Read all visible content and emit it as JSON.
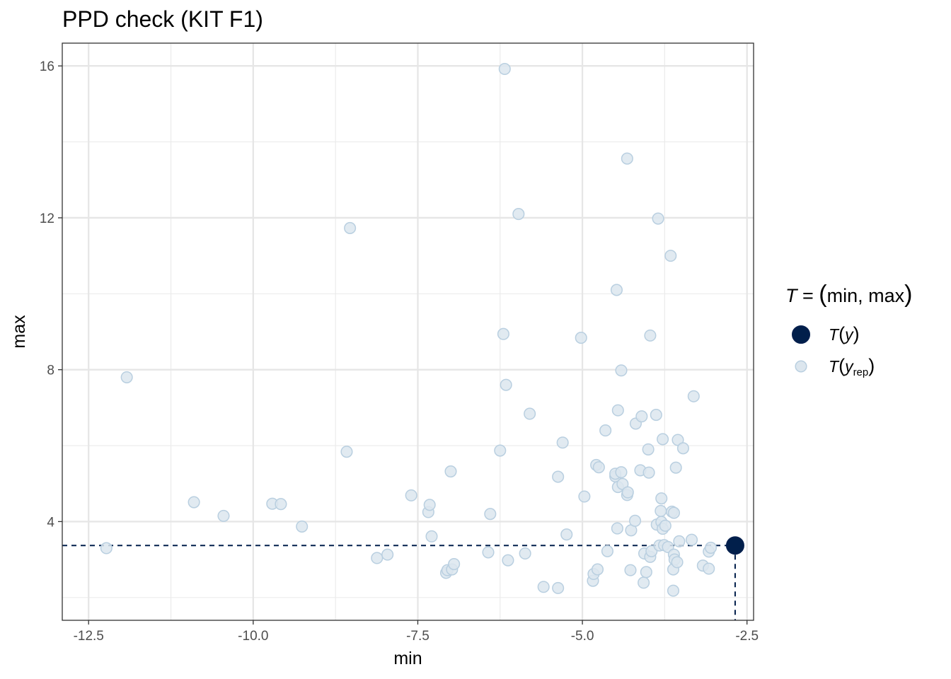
{
  "chart_data": {
    "type": "scatter",
    "title": "PPD check (KIT F1)",
    "xlabel": "min",
    "ylabel": "max",
    "xlim": [
      -12.9,
      -2.4
    ],
    "ylim": [
      1.4,
      16.6
    ],
    "xticks": [
      -12.5,
      -10.0,
      -7.5,
      -5.0,
      -2.5
    ],
    "xtick_labels": [
      "-12.5",
      "-10.0",
      "-7.5",
      "-5.0",
      "-2.5"
    ],
    "yticks": [
      4,
      8,
      12,
      16
    ],
    "ytick_labels": [
      "4",
      "8",
      "12",
      "16"
    ],
    "grid": true,
    "legend": {
      "title": {
        "prefix": "T",
        "equals": " = ",
        "open": "(",
        "body": "min, max",
        "close": ")"
      },
      "placement": "right",
      "entries": [
        {
          "name_fn": "T",
          "name_arg": "y",
          "name_sub": "",
          "color": "#011f4b",
          "stroke": "#031f4d"
        },
        {
          "name_fn": "T",
          "name_arg": "y",
          "name_sub": "rep",
          "color": "#dce6ee",
          "stroke": "#b9cfe0"
        }
      ]
    },
    "observed": {
      "x": -2.68,
      "y": 3.37
    },
    "replicated": [
      {
        "x": -12.23,
        "y": 3.3
      },
      {
        "x": -11.92,
        "y": 7.8
      },
      {
        "x": -10.9,
        "y": 4.51
      },
      {
        "x": -10.45,
        "y": 4.15
      },
      {
        "x": -9.71,
        "y": 4.47
      },
      {
        "x": -9.58,
        "y": 4.46
      },
      {
        "x": -9.26,
        "y": 3.87
      },
      {
        "x": -8.58,
        "y": 5.84
      },
      {
        "x": -8.53,
        "y": 11.73
      },
      {
        "x": -8.12,
        "y": 3.04
      },
      {
        "x": -7.96,
        "y": 3.13
      },
      {
        "x": -7.6,
        "y": 4.69
      },
      {
        "x": -7.34,
        "y": 4.25
      },
      {
        "x": -7.32,
        "y": 4.44
      },
      {
        "x": -7.29,
        "y": 3.61
      },
      {
        "x": -7.07,
        "y": 2.65
      },
      {
        "x": -7.05,
        "y": 2.72
      },
      {
        "x": -6.98,
        "y": 2.74
      },
      {
        "x": -6.95,
        "y": 2.88
      },
      {
        "x": -7.0,
        "y": 5.32
      },
      {
        "x": -6.43,
        "y": 3.19
      },
      {
        "x": -6.4,
        "y": 4.2
      },
      {
        "x": -6.25,
        "y": 5.87
      },
      {
        "x": -6.2,
        "y": 8.94
      },
      {
        "x": -6.18,
        "y": 15.92
      },
      {
        "x": -6.16,
        "y": 7.6
      },
      {
        "x": -6.13,
        "y": 2.98
      },
      {
        "x": -5.97,
        "y": 12.1
      },
      {
        "x": -5.87,
        "y": 3.16
      },
      {
        "x": -5.8,
        "y": 6.84
      },
      {
        "x": -5.59,
        "y": 2.28
      },
      {
        "x": -5.37,
        "y": 2.25
      },
      {
        "x": -5.37,
        "y": 5.18
      },
      {
        "x": -5.3,
        "y": 6.08
      },
      {
        "x": -5.24,
        "y": 3.66
      },
      {
        "x": -5.02,
        "y": 8.84
      },
      {
        "x": -4.97,
        "y": 4.66
      },
      {
        "x": -4.84,
        "y": 2.44
      },
      {
        "x": -4.83,
        "y": 2.62
      },
      {
        "x": -4.77,
        "y": 2.74
      },
      {
        "x": -4.79,
        "y": 5.49
      },
      {
        "x": -4.75,
        "y": 5.43
      },
      {
        "x": -4.65,
        "y": 6.4
      },
      {
        "x": -4.62,
        "y": 3.22
      },
      {
        "x": -4.5,
        "y": 5.19
      },
      {
        "x": -4.5,
        "y": 5.26
      },
      {
        "x": -4.48,
        "y": 10.1
      },
      {
        "x": -4.47,
        "y": 3.82
      },
      {
        "x": -4.46,
        "y": 4.91
      },
      {
        "x": -4.46,
        "y": 6.93
      },
      {
        "x": -4.41,
        "y": 5.3
      },
      {
        "x": -4.41,
        "y": 7.98
      },
      {
        "x": -4.39,
        "y": 4.99
      },
      {
        "x": -4.32,
        "y": 4.7
      },
      {
        "x": -4.31,
        "y": 4.77
      },
      {
        "x": -4.32,
        "y": 13.56
      },
      {
        "x": -4.26,
        "y": 3.77
      },
      {
        "x": -4.27,
        "y": 2.72
      },
      {
        "x": -4.2,
        "y": 4.02
      },
      {
        "x": -4.19,
        "y": 6.58
      },
      {
        "x": -4.12,
        "y": 5.35
      },
      {
        "x": -4.1,
        "y": 6.77
      },
      {
        "x": -4.07,
        "y": 2.39
      },
      {
        "x": -4.06,
        "y": 3.16
      },
      {
        "x": -4.03,
        "y": 2.67
      },
      {
        "x": -4.0,
        "y": 5.9
      },
      {
        "x": -3.99,
        "y": 5.29
      },
      {
        "x": -3.97,
        "y": 8.9
      },
      {
        "x": -3.97,
        "y": 3.07
      },
      {
        "x": -3.95,
        "y": 3.22
      },
      {
        "x": -3.88,
        "y": 6.81
      },
      {
        "x": -3.87,
        "y": 3.92
      },
      {
        "x": -3.85,
        "y": 11.98
      },
      {
        "x": -3.83,
        "y": 3.37
      },
      {
        "x": -3.81,
        "y": 4.28
      },
      {
        "x": -3.8,
        "y": 4.61
      },
      {
        "x": -3.8,
        "y": 3.99
      },
      {
        "x": -3.78,
        "y": 6.17
      },
      {
        "x": -3.78,
        "y": 3.81
      },
      {
        "x": -3.76,
        "y": 3.38
      },
      {
        "x": -3.74,
        "y": 3.89
      },
      {
        "x": -3.7,
        "y": 3.33
      },
      {
        "x": -3.66,
        "y": 11.0
      },
      {
        "x": -3.64,
        "y": 4.26
      },
      {
        "x": -3.62,
        "y": 2.18
      },
      {
        "x": -3.62,
        "y": 2.74
      },
      {
        "x": -3.61,
        "y": 4.23
      },
      {
        "x": -3.61,
        "y": 3.13
      },
      {
        "x": -3.6,
        "y": 3.0
      },
      {
        "x": -3.58,
        "y": 5.42
      },
      {
        "x": -3.56,
        "y": 2.93
      },
      {
        "x": -3.55,
        "y": 6.15
      },
      {
        "x": -3.53,
        "y": 3.48
      },
      {
        "x": -3.47,
        "y": 5.93
      },
      {
        "x": -3.34,
        "y": 3.52
      },
      {
        "x": -3.31,
        "y": 7.3
      },
      {
        "x": -3.17,
        "y": 2.84
      },
      {
        "x": -3.08,
        "y": 2.76
      },
      {
        "x": -3.08,
        "y": 3.21
      },
      {
        "x": -3.05,
        "y": 3.31
      }
    ]
  }
}
